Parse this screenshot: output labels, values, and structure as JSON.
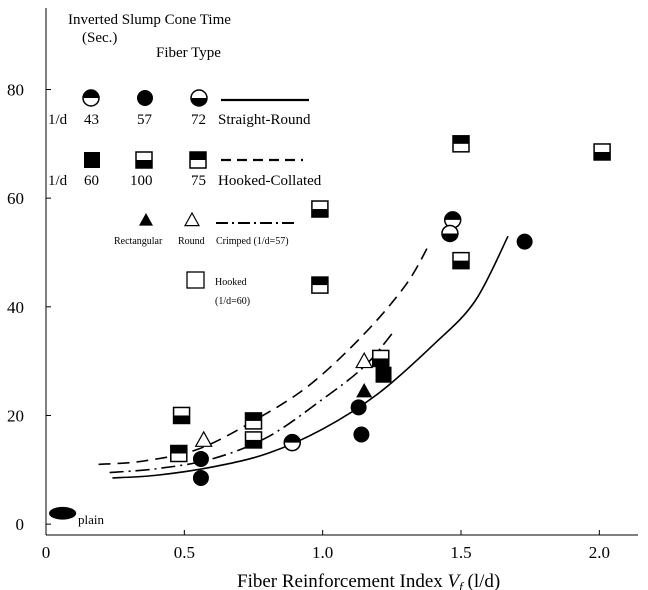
{
  "chart_data": {
    "type": "scatter",
    "title": "Inverted Slump Cone Time",
    "ylabel_unit": "(Sec.)",
    "xlabel_prefix": "Fiber Reinforcement Index ",
    "xlabel_var": "V",
    "xlabel_sub": "f",
    "xlabel_suffix": " (l/d)",
    "xlim": [
      0,
      2.1
    ],
    "ylim": [
      -2,
      95
    ],
    "x_ticks": [
      {
        "value": 0,
        "label": "0"
      },
      {
        "value": 0.5,
        "label": "0.5"
      },
      {
        "value": 1.0,
        "label": "1.0"
      },
      {
        "value": 1.5,
        "label": "1.5"
      },
      {
        "value": 2.0,
        "label": "2.0"
      }
    ],
    "y_ticks": [
      {
        "value": 0,
        "label": "0"
      },
      {
        "value": 20,
        "label": "20"
      },
      {
        "value": 40,
        "label": "40"
      },
      {
        "value": 60,
        "label": "60"
      },
      {
        "value": 80,
        "label": "80"
      }
    ],
    "legend": {
      "fiber_type_title": "Fiber Type",
      "ld_label": "1/d",
      "straight_round": {
        "label": "Straight-Round",
        "values": [
          "43",
          "57",
          "72"
        ]
      },
      "hooked_collated": {
        "label": "Hooked-Collated",
        "values": [
          "60",
          "100",
          "75"
        ]
      },
      "rectangular_label": "Rectangular",
      "round_label": "Round",
      "crimped_label": "Crimped (1/d=57)",
      "hooked_label": "Hooked",
      "hooked_note": "(1/d=60)",
      "plain_label": "plain"
    },
    "series": [
      {
        "marker": "circle-half-top",
        "points": [
          [
            0.89,
            15
          ],
          [
            1.47,
            56
          ]
        ]
      },
      {
        "marker": "circle-filled",
        "points": [
          [
            0.56,
            8.5
          ],
          [
            0.56,
            12
          ],
          [
            1.13,
            21.5
          ],
          [
            1.14,
            16.5
          ],
          [
            1.73,
            52
          ]
        ]
      },
      {
        "marker": "circle-half-bottom",
        "points": [
          [
            1.46,
            53.5
          ]
        ]
      },
      {
        "marker": "square-filled",
        "points": [
          [
            1.22,
            27.5
          ]
        ]
      },
      {
        "marker": "square-half-bottom",
        "points": [
          [
            0.49,
            20
          ],
          [
            0.75,
            15.5
          ],
          [
            0.99,
            58
          ],
          [
            1.5,
            48.5
          ],
          [
            1.21,
            30.5
          ],
          [
            2.01,
            68.5
          ]
        ]
      },
      {
        "marker": "square-half-top",
        "points": [
          [
            0.48,
            13
          ],
          [
            0.75,
            19
          ],
          [
            0.99,
            44
          ],
          [
            1.5,
            70
          ]
        ]
      },
      {
        "marker": "triangle-filled",
        "points": [
          [
            1.15,
            24.5
          ]
        ]
      },
      {
        "marker": "triangle-open",
        "points": [
          [
            0.57,
            15.5
          ],
          [
            1.15,
            30
          ]
        ]
      },
      {
        "marker": "ellipse-filled",
        "points": [
          [
            0.06,
            2
          ]
        ]
      }
    ],
    "curves": [
      {
        "style": "solid",
        "points": [
          [
            0.24,
            8.5
          ],
          [
            0.4,
            9
          ],
          [
            0.6,
            10.5
          ],
          [
            0.8,
            13
          ],
          [
            1.0,
            17.5
          ],
          [
            1.2,
            24
          ],
          [
            1.4,
            33
          ],
          [
            1.55,
            41
          ],
          [
            1.67,
            53
          ]
        ]
      },
      {
        "style": "dashed",
        "points": [
          [
            0.19,
            11
          ],
          [
            0.35,
            11.6
          ],
          [
            0.55,
            13.8
          ],
          [
            0.75,
            19
          ],
          [
            0.95,
            25.5
          ],
          [
            1.15,
            35
          ],
          [
            1.3,
            44
          ],
          [
            1.38,
            51
          ]
        ]
      },
      {
        "style": "dashdot",
        "points": [
          [
            0.23,
            9.5
          ],
          [
            0.4,
            10.2
          ],
          [
            0.6,
            12
          ],
          [
            0.8,
            16
          ],
          [
            1.0,
            23
          ],
          [
            1.15,
            29
          ],
          [
            1.25,
            35
          ]
        ]
      }
    ]
  }
}
